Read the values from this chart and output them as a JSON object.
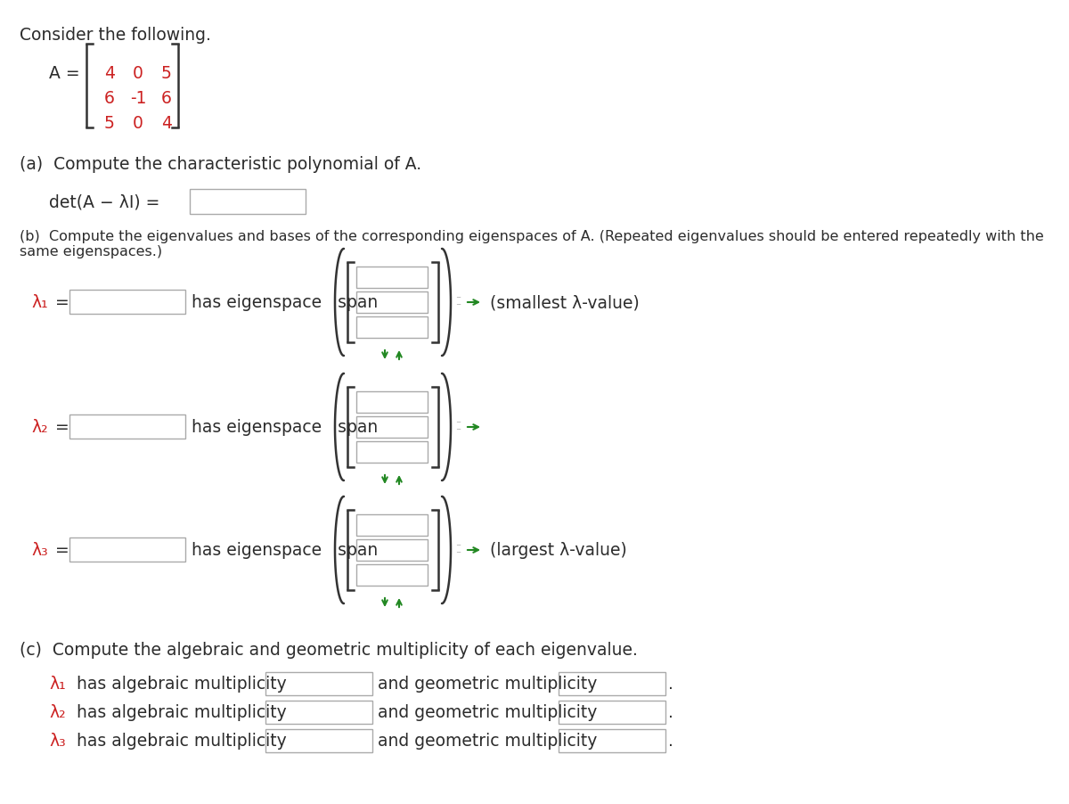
{
  "bg_color": "#ffffff",
  "text_color": "#2c2c2c",
  "red_color": "#cc2222",
  "green_color": "#228822",
  "gray_color": "#888888",
  "consider_text": "Consider the following.",
  "matrix_label": "A =",
  "matrix_rows": [
    [
      "4",
      "0",
      "5"
    ],
    [
      "6",
      "-1",
      "6"
    ],
    [
      "5",
      "0",
      "4"
    ]
  ],
  "part_a_text": "(a)  Compute the characteristic polynomial of A.",
  "det_label": "det(A − λI) =",
  "part_b_text": "(b)  Compute the eigenvalues and bases of the corresponding eigenspaces of A. (Repeated eigenvalues should be entered repeatedly with the same eigenspaces.)",
  "lambda_labels": [
    "λ₁",
    "λ₂",
    "λ₃"
  ],
  "has_eigenspace": "has eigenspace   span",
  "smallest_label": "(smallest λ-value)",
  "largest_label": "(largest λ-value)",
  "part_c_text": "(c)  Compute the algebraic and geometric multiplicity of each eigenvalue.",
  "alg_labels": [
    "λ₁",
    "λ₂",
    "λ₃"
  ],
  "alg_text": " has algebraic multiplicity",
  "and_geo_text": "and geometric multiplicity",
  "input_box_edge": "#aaaaaa",
  "arrow_color": "#228822"
}
